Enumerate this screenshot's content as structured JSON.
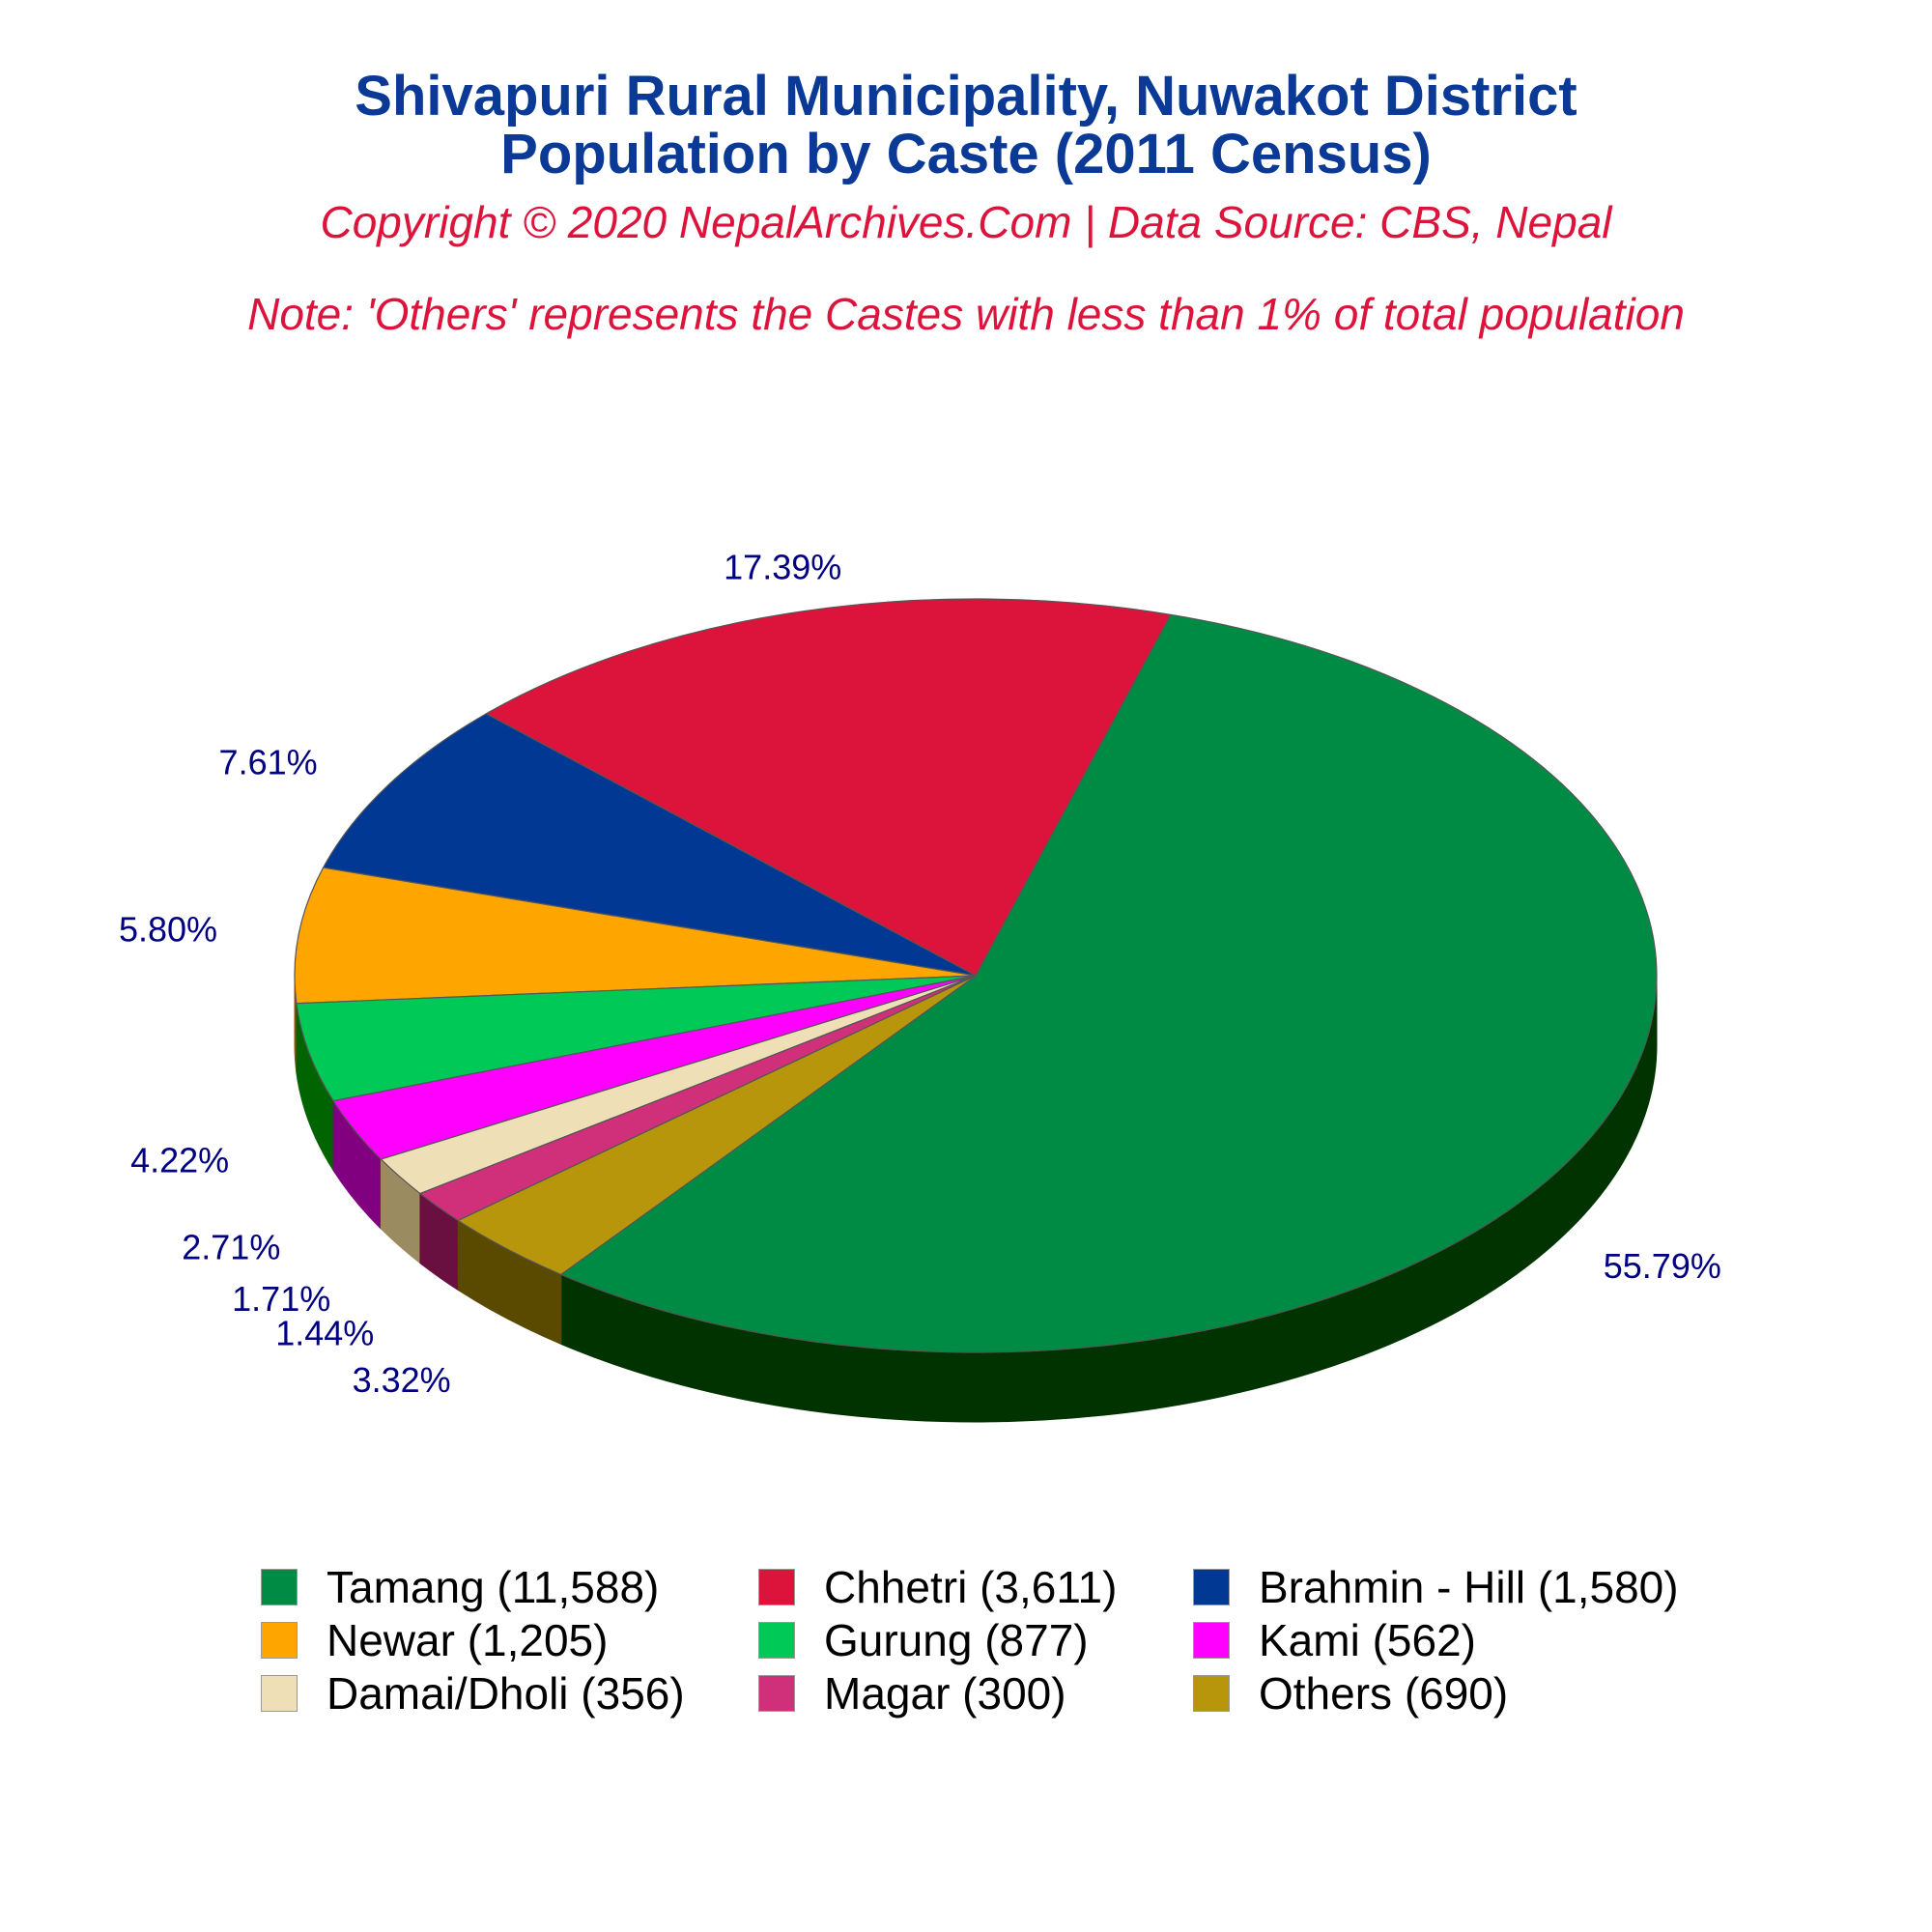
{
  "title_line1": "Shivapuri Rural Municipality, Nuwakot District",
  "title_line2": "Population by Caste (2011 Census)",
  "copyright": "Copyright © 2020 NepalArchives.Com | Data Source: CBS, Nepal",
  "note": "Note: 'Others' represents the Castes with less than 1% of total population",
  "chart_data": {
    "type": "pie",
    "style": "3d",
    "legend_position": "bottom",
    "slices": [
      {
        "label": "Tamang (11,588)",
        "value": 11588,
        "percent_label": "55.79%",
        "color": "#008b45",
        "side_color": "#003300"
      },
      {
        "label": "Chhetri (3,611)",
        "value": 3611,
        "percent_label": "17.39%",
        "color": "#dc143c",
        "side_color": "#800000"
      },
      {
        "label": "Brahmin - Hill (1,580)",
        "value": 1580,
        "percent_label": "7.61%",
        "color": "#003893",
        "side_color": "#000040"
      },
      {
        "label": "Newar (1,205)",
        "value": 1205,
        "percent_label": "5.80%",
        "color": "#ffa500",
        "side_color": "#a34a00"
      },
      {
        "label": "Gurung (877)",
        "value": 877,
        "percent_label": "4.22%",
        "color": "#00c957",
        "side_color": "#006400"
      },
      {
        "label": "Kami (562)",
        "value": 562,
        "percent_label": "2.71%",
        "color": "#ff00ff",
        "side_color": "#800080"
      },
      {
        "label": "Damai/Dholi (356)",
        "value": 356,
        "percent_label": "1.71%",
        "color": "#eedfb6",
        "side_color": "#9a8c60"
      },
      {
        "label": "Magar (300)",
        "value": 300,
        "percent_label": "1.44%",
        "color": "#d02f7a",
        "side_color": "#6a1040"
      },
      {
        "label": "Others (690)",
        "value": 690,
        "percent_label": "3.32%",
        "color": "#b8960c",
        "side_color": "#5a4a00"
      }
    ],
    "label_color": "#000080"
  }
}
